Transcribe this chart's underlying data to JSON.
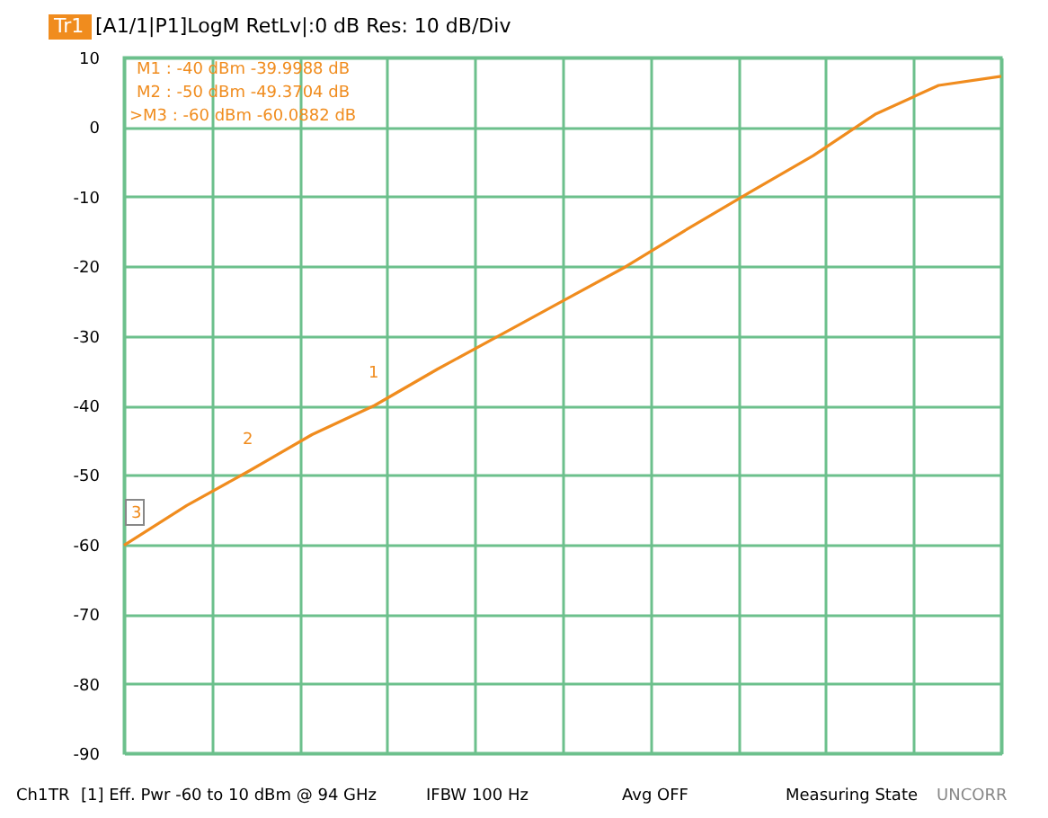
{
  "chart_data": {
    "type": "line",
    "title": "[A1/1|P1]LogM RetLv|:0 dB Res: 10 dB/Div",
    "annotations": [
      "Tr1",
      "M1  :  -40 dBm -39.9988 dB",
      "M2  :  -50 dBm -49.3704 dB",
      ">M3  :  -60 dBm -60.0882 dB",
      "1",
      "2",
      "3",
      "Ch1",
      "TR",
      "[1] Eff. Pwr  -60 to 10  dBm  @ 94 GHz",
      "IFBW 100 Hz",
      "Avg OFF",
      "Measuring State",
      "UNCORR"
    ],
    "categories": [
      null,
      null,
      null,
      null,
      null,
      null,
      null,
      null,
      null,
      null,
      null,
      null,
      null,
      null,
      null
    ],
    "series": [
      {
        "color": "#f08c1e",
        "values": [
          -60.1,
          -54.4,
          -49.4,
          -44.2,
          -40.0,
          -34.8,
          -29.9,
          -25.0,
          -20.1,
          -14.6,
          -9.3,
          -4.1,
          1.9,
          6.0,
          7.3
        ]
      }
    ],
    "ylim": [
      -90,
      10
    ],
    "yticks": [
      -90,
      -80,
      -70,
      -60,
      -50,
      -40,
      -30,
      -20,
      -10,
      0,
      10
    ],
    "tick_labels": "y",
    "grid": true,
    "marker": "none",
    "line_style": "solid"
  }
}
